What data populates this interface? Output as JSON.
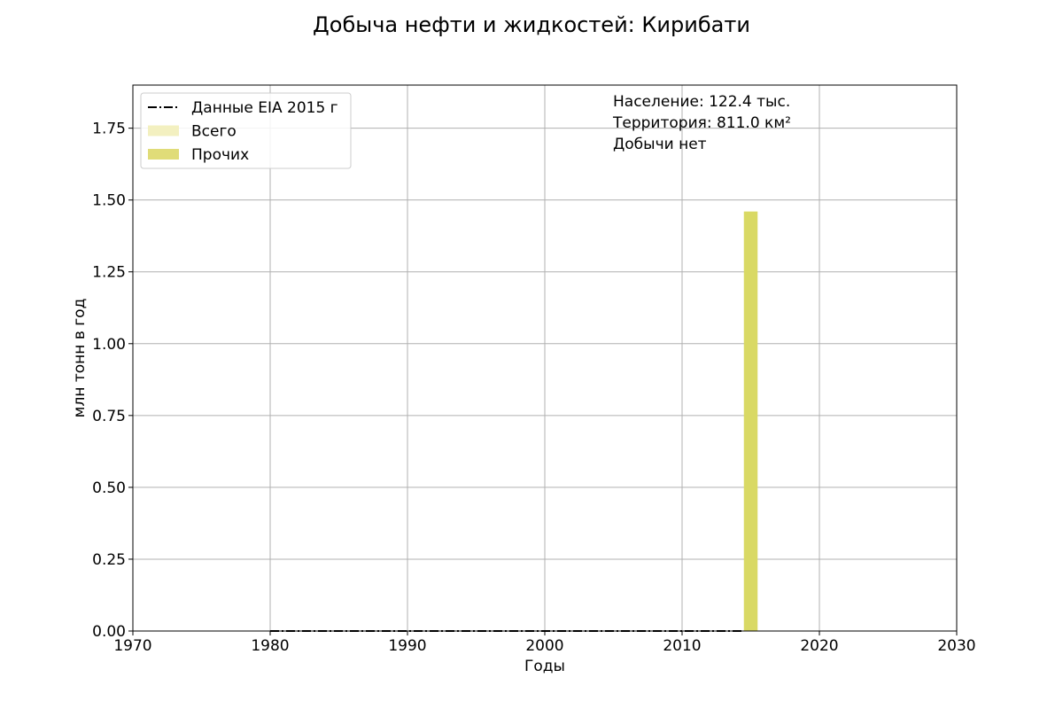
{
  "chart_data": {
    "type": "bar",
    "title": "Добыча нефти и жидкостей: Кирибати",
    "xlabel": "Годы",
    "ylabel": "млн тонн в год",
    "xlim": [
      1970,
      2030
    ],
    "ylim": [
      0,
      1.9
    ],
    "x_ticks": [
      1970,
      1980,
      1990,
      2000,
      2010,
      2020,
      2030
    ],
    "y_ticks": [
      0.0,
      0.25,
      0.5,
      0.75,
      1.0,
      1.25,
      1.5,
      1.75
    ],
    "y_tick_labels": [
      "0.00",
      "0.25",
      "0.50",
      "0.75",
      "1.00",
      "1.25",
      "1.50",
      "1.75"
    ],
    "grid": true,
    "legend_position": "top-left",
    "legend": [
      {
        "label": "Данные EIA 2015 г",
        "kind": "line",
        "color": "#000000"
      },
      {
        "label": "Всего",
        "kind": "patch",
        "color": "#f3f0c0"
      },
      {
        "label": "Прочих",
        "kind": "patch",
        "color": "#e0dc78"
      }
    ],
    "series": [
      {
        "name": "Данные EIA 2015 г",
        "type": "line",
        "style": "dashdot",
        "color": "#000000",
        "x": [
          1980,
          2014.5
        ],
        "y": [
          0,
          0
        ]
      },
      {
        "name": "Прочих",
        "type": "bar",
        "color": "#d9d964",
        "x": [
          2015
        ],
        "y": [
          1.46
        ],
        "bar_width": 1
      }
    ],
    "annotations": [
      "Население: 122.4 тыс.",
      "Территория: 811.0 км²",
      "Добычи нет"
    ]
  }
}
